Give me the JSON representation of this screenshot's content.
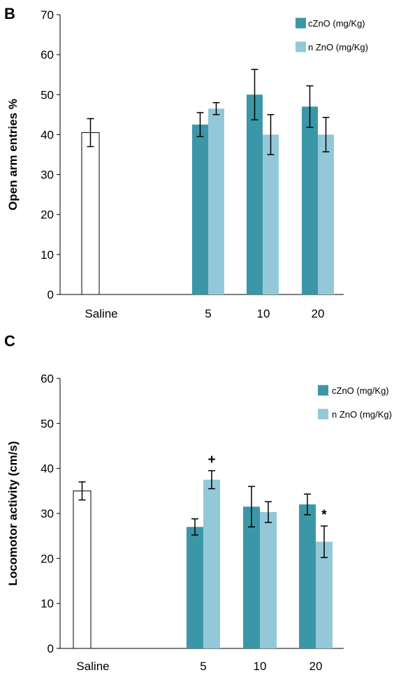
{
  "colors": {
    "cZnO": "#3b97a8",
    "nZnO": "#93c8d9",
    "saline": "#ffffff",
    "saline_stroke": "#000000"
  },
  "chart_data": [
    {
      "panel": "B",
      "type": "bar",
      "ylabel": "Open arm entries %",
      "ylim": [
        0,
        70
      ],
      "yticks": [
        "0",
        "10",
        "20",
        "30",
        "40",
        "50",
        "60",
        "70"
      ],
      "categories": [
        "Saline",
        "5",
        "10",
        "20"
      ],
      "saline": {
        "value": 40.5,
        "error": 3.5
      },
      "series": [
        {
          "name": "cZnO (mg/Kg)",
          "values": [
            null,
            42.5,
            50,
            47
          ],
          "errors": [
            null,
            3,
            6.3,
            5.2
          ]
        },
        {
          "name": "n ZnO (mg/Kg)",
          "values": [
            null,
            46.5,
            40,
            40
          ],
          "errors": [
            null,
            1.5,
            5,
            4.3
          ]
        }
      ],
      "annotations": [],
      "legend_position": "top-right",
      "grid": false
    },
    {
      "panel": "C",
      "type": "bar",
      "ylabel": "Locomotor activity (cm/s)",
      "ylim": [
        0,
        60
      ],
      "yticks": [
        "0",
        "10",
        "20",
        "30",
        "40",
        "50",
        "60"
      ],
      "categories": [
        "Saline",
        "5",
        "10",
        "20"
      ],
      "saline": {
        "value": 35,
        "error": 2
      },
      "series": [
        {
          "name": "cZnO (mg/Kg)",
          "values": [
            null,
            27,
            31.5,
            32
          ],
          "errors": [
            null,
            1.8,
            4.5,
            2.3
          ]
        },
        {
          "name": "n ZnO (mg/Kg)",
          "values": [
            null,
            37.5,
            30.3,
            23.7
          ],
          "errors": [
            null,
            2,
            2.3,
            3.5
          ]
        }
      ],
      "annotations": [
        {
          "text": "+",
          "category": "5",
          "series": 1
        },
        {
          "text": "*",
          "category": "20",
          "series": 1
        }
      ],
      "legend_position": "top-right",
      "grid": false
    }
  ]
}
